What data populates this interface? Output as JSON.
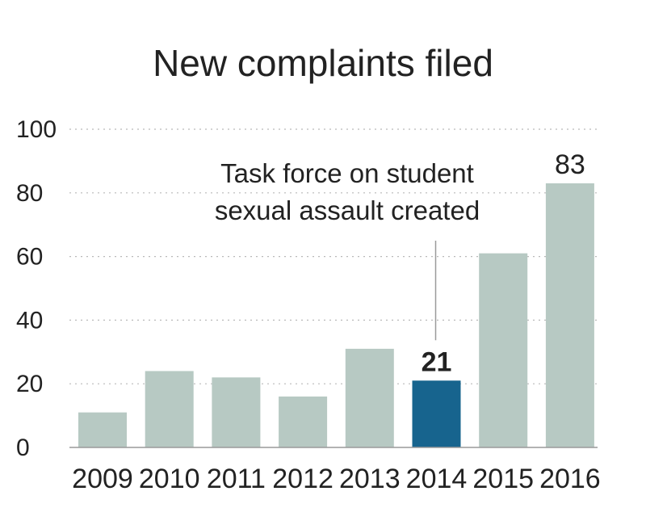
{
  "chart_data": {
    "type": "bar",
    "title": "New complaints filed",
    "categories": [
      "2009",
      "2010",
      "2011",
      "2012",
      "2013",
      "2014",
      "2015",
      "2016"
    ],
    "values": [
      11,
      24,
      22,
      16,
      31,
      21,
      61,
      83
    ],
    "ylim": [
      0,
      100
    ],
    "yticks": [
      "0",
      "20",
      "40",
      "60",
      "80",
      "100"
    ],
    "grid": true,
    "data_labels": [
      {
        "category": "2014",
        "text": "21",
        "bold": true
      },
      {
        "category": "2016",
        "text": "83",
        "bold": false
      }
    ],
    "annotation": {
      "category": "2014",
      "lines": [
        "Task force on student",
        "sexual assault created"
      ]
    },
    "colors": {
      "bar": "#b7c9c3",
      "highlight_bar": "#17648e",
      "highlight_category": "2014"
    }
  }
}
